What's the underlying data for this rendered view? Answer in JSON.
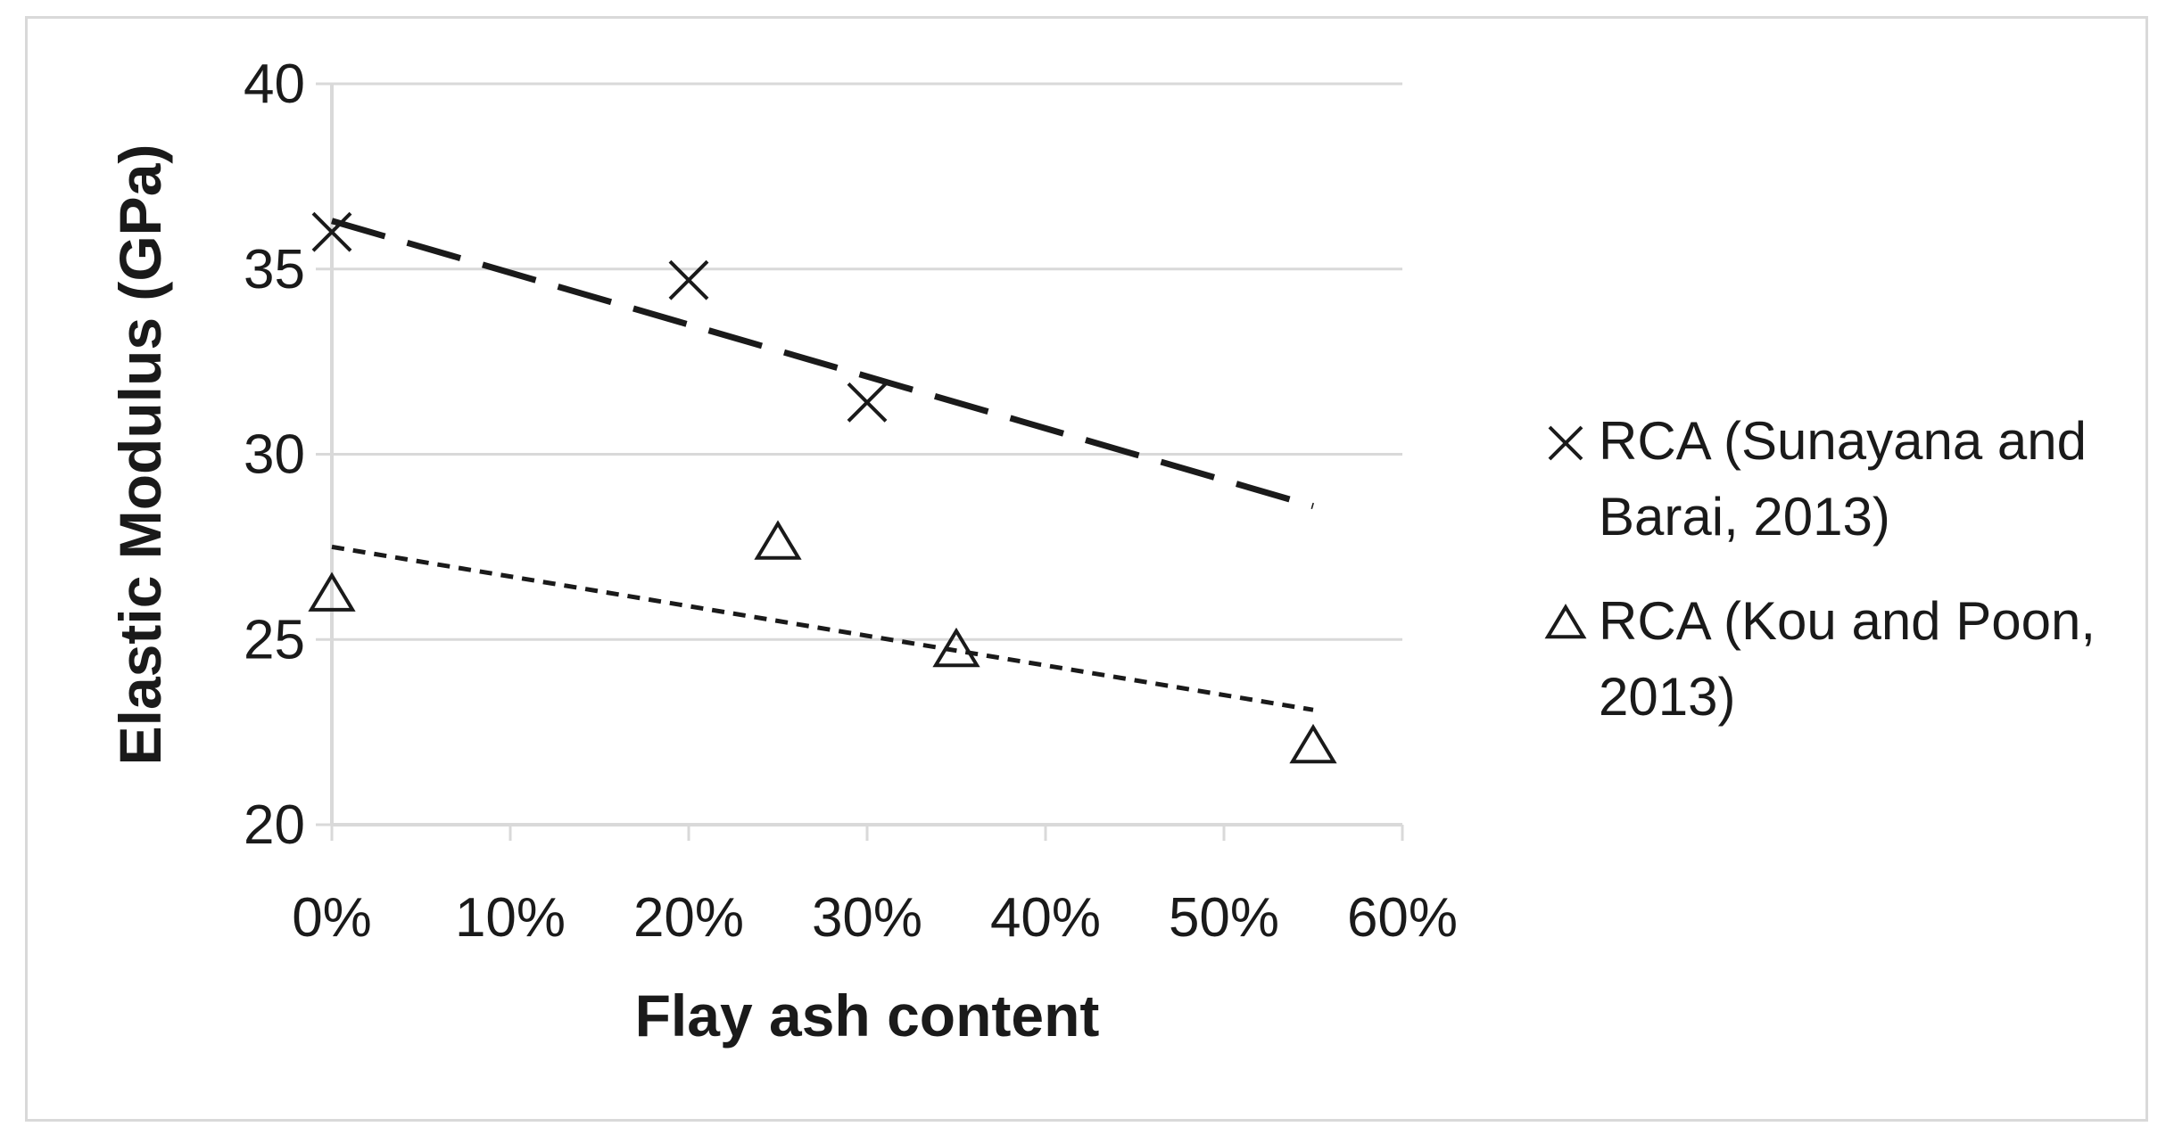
{
  "chart_data": {
    "type": "scatter",
    "xlabel": "Flay ash content",
    "ylabel": "Elastic Modulus (GPa)",
    "xlim": [
      0,
      0.6
    ],
    "ylim": [
      20,
      40
    ],
    "x_ticks": [
      "0%",
      "10%",
      "20%",
      "30%",
      "40%",
      "50%",
      "60%"
    ],
    "y_ticks": [
      "20",
      "25",
      "30",
      "35",
      "40"
    ],
    "grid": "horizontal",
    "legend_position": "right",
    "series": [
      {
        "name": "RCA (Sunayana and Barai, 2013)",
        "legend_lines": [
          "RCA (Sunayana and",
          "Barai, 2013)"
        ],
        "marker": "x",
        "trendline": "long-dash",
        "points": [
          {
            "x": 0.0,
            "y": 36.0
          },
          {
            "x": 0.2,
            "y": 34.7
          },
          {
            "x": 0.3,
            "y": 31.4
          }
        ],
        "trend": [
          {
            "x": 0.0,
            "y": 36.3
          },
          {
            "x": 0.55,
            "y": 28.6
          }
        ]
      },
      {
        "name": "RCA (Kou and Poon, 2013)",
        "legend_lines": [
          "RCA (Kou and Poon,",
          "2013)"
        ],
        "marker": "triangle",
        "trendline": "short-dash",
        "points": [
          {
            "x": 0.0,
            "y": 26.2
          },
          {
            "x": 0.25,
            "y": 27.6
          },
          {
            "x": 0.35,
            "y": 24.7
          },
          {
            "x": 0.55,
            "y": 22.1
          }
        ],
        "trend": [
          {
            "x": 0.0,
            "y": 27.5
          },
          {
            "x": 0.55,
            "y": 23.1
          }
        ]
      }
    ]
  },
  "colors": {
    "ink": "#1a1a1a",
    "grid": "#d9d9d9",
    "frame": "#d9d9d9"
  }
}
